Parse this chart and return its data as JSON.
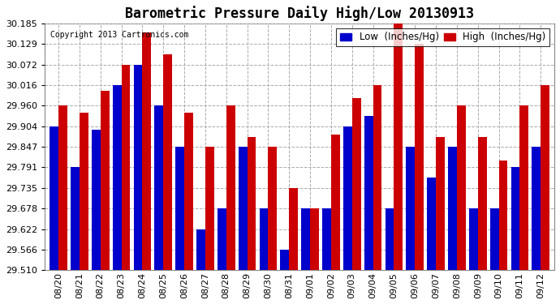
{
  "title": "Barometric Pressure Daily High/Low 20130913",
  "copyright": "Copyright 2013 Cartronics.com",
  "legend_low": "Low  (Inches/Hg)",
  "legend_high": "High  (Inches/Hg)",
  "ylim": [
    29.51,
    30.185
  ],
  "yticks": [
    29.51,
    29.566,
    29.622,
    29.678,
    29.735,
    29.791,
    29.847,
    29.904,
    29.96,
    30.016,
    30.072,
    30.129,
    30.185
  ],
  "dates": [
    "08/20",
    "08/21",
    "08/22",
    "08/23",
    "08/24",
    "08/25",
    "08/26",
    "08/27",
    "08/28",
    "08/29",
    "08/30",
    "08/31",
    "09/01",
    "09/02",
    "09/03",
    "09/04",
    "09/05",
    "09/06",
    "09/07",
    "09/08",
    "09/09",
    "09/10",
    "09/11",
    "09/12"
  ],
  "low": [
    29.904,
    29.791,
    29.895,
    30.016,
    30.072,
    29.96,
    29.847,
    29.622,
    29.678,
    29.847,
    29.678,
    29.566,
    29.678,
    29.678,
    29.904,
    29.932,
    29.678,
    29.847,
    29.763,
    29.847,
    29.678,
    29.678,
    29.791,
    29.847
  ],
  "high": [
    29.96,
    29.94,
    30.0,
    30.072,
    30.16,
    30.1,
    29.94,
    29.847,
    29.96,
    29.875,
    29.847,
    29.735,
    29.678,
    29.88,
    29.98,
    30.016,
    30.185,
    30.129,
    29.875,
    29.96,
    29.875,
    29.81,
    29.96,
    30.016
  ],
  "bar_color_low": "#0000cc",
  "bar_color_high": "#cc0000",
  "background_color": "#ffffff",
  "grid_color": "#aaaaaa",
  "title_fontsize": 12,
  "tick_fontsize": 8,
  "legend_fontsize": 8.5,
  "ybaseline": 29.51
}
